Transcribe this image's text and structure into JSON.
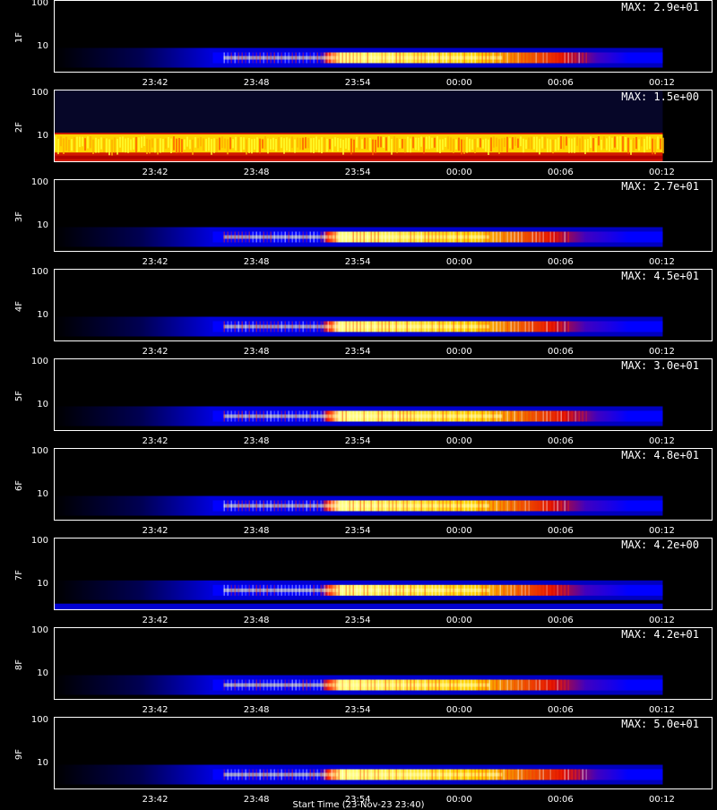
{
  "x_tick_labels": [
    "23:42",
    "23:48",
    "23:54",
    "00:00",
    "00:06",
    "00:12"
  ],
  "y_tick_labels": [
    "100",
    "10"
  ],
  "x_axis_label": "Start Time (23-Nov-23 23:40)",
  "chart_data": {
    "type": "heatmap",
    "x_range": [
      "23:36",
      "00:15"
    ],
    "data_end": "00:12",
    "y_scale": "log",
    "y_range": [
      3,
      100
    ],
    "colormap": [
      "#000000",
      "#0000ff",
      "#ff0000",
      "#ffff00",
      "#ffffff"
    ],
    "panels": [
      {
        "label": "1F",
        "max": "MAX: 2.9e+01",
        "band": "narrow",
        "bright_start": "23:46",
        "fade_end": "00:08"
      },
      {
        "label": "2F",
        "max": "MAX: 1.5e+00",
        "band": "wide",
        "bright_start": "23:36",
        "fade_end": "00:12"
      },
      {
        "label": "3F",
        "max": "MAX: 2.7e+01",
        "band": "narrow",
        "bright_start": "23:46",
        "fade_end": "00:07"
      },
      {
        "label": "4F",
        "max": "MAX: 4.5e+01",
        "band": "narrow",
        "bright_start": "23:46",
        "fade_end": "00:07"
      },
      {
        "label": "5F",
        "max": "MAX: 3.0e+01",
        "band": "narrow",
        "bright_start": "23:46",
        "fade_end": "00:08"
      },
      {
        "label": "6F",
        "max": "MAX: 4.8e+01",
        "band": "narrow",
        "bright_start": "23:46",
        "fade_end": "00:07"
      },
      {
        "label": "7F",
        "max": "MAX: 4.2e+00",
        "band": "high",
        "bright_start": "23:46",
        "fade_end": "00:07"
      },
      {
        "label": "8F",
        "max": "MAX: 4.2e+01",
        "band": "narrow",
        "bright_start": "23:46",
        "fade_end": "00:07"
      },
      {
        "label": "9F",
        "max": "MAX: 5.0e+01",
        "band": "narrow",
        "bright_start": "23:46",
        "fade_end": "00:08"
      }
    ]
  }
}
